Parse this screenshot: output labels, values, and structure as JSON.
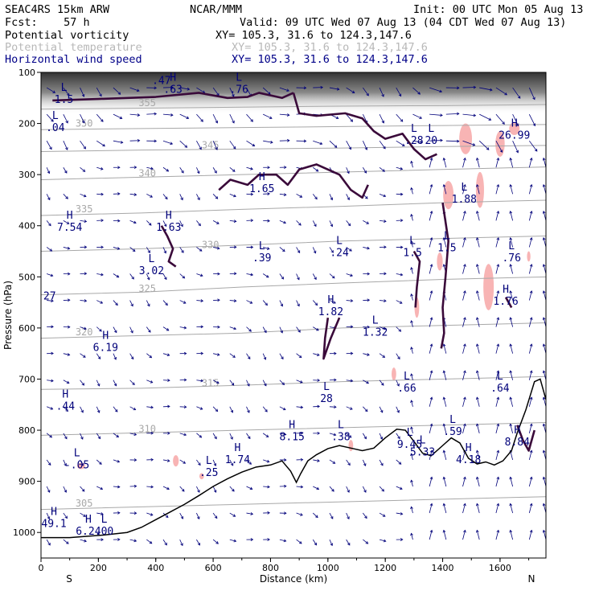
{
  "header": {
    "model": "SEAC4RS 15km ARW",
    "forecast": "Fcst:    57 h",
    "center": "NCAR/MMM",
    "init": "Init: 00 UTC Mon 05 Aug 13",
    "valid": "Valid: 09 UTC Wed 07 Aug 13 (04 CDT Wed 07 Aug 13)"
  },
  "fields": [
    {
      "name": "Potential vorticity",
      "xy": "XY= 105.3, 31.6 to 124.3,147.6",
      "color": "#000000"
    },
    {
      "name": "Potential temperature",
      "xy": "XY= 105.3, 31.6 to 124.3,147.6",
      "color": "#b8b8b8"
    },
    {
      "name": "Horizontal wind speed",
      "xy": "XY= 105.3, 31.6 to 124.3,147.6",
      "color": "#000088"
    }
  ],
  "colors": {
    "pv_contour": "#3a0a3a",
    "theta_contour": "#a8a8a8",
    "wind_vectors": "#00007a",
    "terrain": "#000000",
    "shading_pink": "#f8b4b4"
  },
  "chart_data": {
    "type": "cross-section",
    "xlabel": "Distance (km)",
    "ylabel": "Pressure (hPa)",
    "xlim": [
      0,
      1760
    ],
    "ylim": [
      1050,
      100
    ],
    "x_ticks": [
      0,
      200,
      400,
      600,
      800,
      1000,
      1200,
      1400,
      1600
    ],
    "y_ticks": [
      100,
      200,
      300,
      400,
      500,
      600,
      700,
      800,
      900,
      1000
    ],
    "x_end_labels": {
      "left": "S",
      "right": "N"
    },
    "terrain": [
      [
        0,
        1010
      ],
      [
        100,
        1010
      ],
      [
        150,
        1008
      ],
      [
        220,
        1005
      ],
      [
        300,
        1000
      ],
      [
        350,
        990
      ],
      [
        400,
        975
      ],
      [
        450,
        960
      ],
      [
        500,
        945
      ],
      [
        550,
        928
      ],
      [
        600,
        910
      ],
      [
        650,
        895
      ],
      [
        700,
        882
      ],
      [
        750,
        872
      ],
      [
        800,
        868
      ],
      [
        840,
        860
      ],
      [
        870,
        880
      ],
      [
        890,
        902
      ],
      [
        905,
        885
      ],
      [
        930,
        860
      ],
      [
        960,
        848
      ],
      [
        1000,
        836
      ],
      [
        1040,
        830
      ],
      [
        1080,
        835
      ],
      [
        1120,
        840
      ],
      [
        1160,
        835
      ],
      [
        1200,
        815
      ],
      [
        1240,
        798
      ],
      [
        1270,
        800
      ],
      [
        1300,
        822
      ],
      [
        1330,
        845
      ],
      [
        1360,
        850
      ],
      [
        1400,
        830
      ],
      [
        1430,
        815
      ],
      [
        1460,
        825
      ],
      [
        1490,
        855
      ],
      [
        1520,
        866
      ],
      [
        1550,
        862
      ],
      [
        1580,
        868
      ],
      [
        1610,
        860
      ],
      [
        1640,
        840
      ],
      [
        1660,
        805
      ],
      [
        1690,
        760
      ],
      [
        1720,
        705
      ],
      [
        1740,
        700
      ],
      [
        1760,
        740
      ]
    ],
    "theta_contours": [
      {
        "label": "305",
        "pressure": [
          955,
          950,
          945,
          940,
          935,
          930
        ]
      },
      {
        "label": "310",
        "pressure": [
          810,
          805,
          800,
          795,
          790,
          785
        ]
      },
      {
        "label": "315",
        "pressure": [
          720,
          718,
          712,
          705,
          700,
          695
        ]
      },
      {
        "label": "320",
        "pressure": [
          620,
          615,
          610,
          600,
          595,
          590
        ]
      },
      {
        "label": "325",
        "pressure": [
          535,
          530,
          520,
          512,
          505,
          500
        ]
      },
      {
        "label": "330",
        "pressure": [
          450,
          445,
          438,
          430,
          425,
          420
        ]
      },
      {
        "label": "335",
        "pressure": [
          380,
          375,
          368,
          362,
          355,
          350
        ]
      },
      {
        "label": "340",
        "pressure": [
          310,
          305,
          300,
          295,
          290,
          285
        ]
      },
      {
        "label": "345",
        "pressure": [
          255,
          252,
          250,
          248,
          245,
          243
        ]
      },
      {
        "label": "350",
        "pressure": [
          212,
          210,
          208,
          206,
          204,
          202
        ]
      },
      {
        "label": "355",
        "pressure": [
          172,
          170,
          168,
          166,
          165,
          163
        ]
      }
    ],
    "extrema_labels": [
      {
        "t": "L",
        "v": "1.5",
        "x": 80,
        "p": 155
      },
      {
        "t": "L",
        "v": ".47",
        "x": 420,
        "p": 118
      },
      {
        "t": "H",
        "v": ".63",
        "x": 460,
        "p": 135
      },
      {
        "t": "L",
        "v": ".76",
        "x": 690,
        "p": 135
      },
      {
        "t": "L",
        "v": ".04",
        "x": 50,
        "p": 210
      },
      {
        "t": "H",
        "v": "1.65",
        "x": 770,
        "p": 330
      },
      {
        "t": "H",
        "v": "7.54",
        "x": 100,
        "p": 405
      },
      {
        "t": "H",
        "v": "1.63",
        "x": 445,
        "p": 405
      },
      {
        "t": "L",
        "v": "3.02",
        "x": 385,
        "p": 490
      },
      {
        "t": "L",
        "v": ".39",
        "x": 770,
        "p": 465
      },
      {
        "t": "L",
        "v": ".24",
        "x": 1040,
        "p": 455
      },
      {
        "t": "L",
        "v": "1.5",
        "x": 1295,
        "p": 455
      },
      {
        "t": "L",
        "v": "1.5",
        "x": 1415,
        "p": 445
      },
      {
        "t": "L",
        "v": ".76",
        "x": 1640,
        "p": 465
      },
      {
        "t": "L",
        "v": ".28",
        "x": 1300,
        "p": 235
      },
      {
        "t": "L",
        "v": "20",
        "x": 1360,
        "p": 235
      },
      {
        "t": "L",
        "v": "1.88",
        "x": 1475,
        "p": 350
      },
      {
        "t": "H",
        "v": "26.99",
        "x": 1650,
        "p": 225
      },
      {
        "t": "",
        "v": "27",
        "x": 30,
        "p": 540
      },
      {
        "t": "H",
        "v": "1.82",
        "x": 1010,
        "p": 570
      },
      {
        "t": "L",
        "v": "1.32",
        "x": 1165,
        "p": 610
      },
      {
        "t": "H",
        "v": "1.76",
        "x": 1620,
        "p": 550
      },
      {
        "t": "H",
        "v": "6.19",
        "x": 225,
        "p": 640
      },
      {
        "t": "H",
        "v": ".44",
        "x": 85,
        "p": 755
      },
      {
        "t": "L",
        "v": "28",
        "x": 995,
        "p": 740
      },
      {
        "t": "L",
        "v": ".66",
        "x": 1275,
        "p": 720
      },
      {
        "t": "L",
        "v": ".64",
        "x": 1600,
        "p": 720
      },
      {
        "t": "H",
        "v": "8.15",
        "x": 875,
        "p": 815
      },
      {
        "t": "L",
        "v": ".38",
        "x": 1045,
        "p": 815
      },
      {
        "t": "L",
        "v": ".59",
        "x": 1435,
        "p": 805
      },
      {
        "t": "H",
        "v": "8.84",
        "x": 1660,
        "p": 825
      },
      {
        "t": "L",
        "v": "9.45",
        "x": 1285,
        "p": 830
      },
      {
        "t": "L",
        "v": "5.33",
        "x": 1330,
        "p": 845
      },
      {
        "t": "H",
        "v": "1.74",
        "x": 685,
        "p": 860
      },
      {
        "t": "L",
        "v": "-.05",
        "x": 125,
        "p": 870
      },
      {
        "t": "L",
        "v": ".25",
        "x": 585,
        "p": 885
      },
      {
        "t": "H",
        "v": "4.18",
        "x": 1490,
        "p": 860
      },
      {
        "t": "H",
        "v": "49.1",
        "x": 45,
        "p": 985
      },
      {
        "t": "H",
        "v": "6.24",
        "x": 165,
        "p": 1000
      },
      {
        "t": "L",
        "v": ".00",
        "x": 220,
        "p": 1000
      }
    ]
  }
}
